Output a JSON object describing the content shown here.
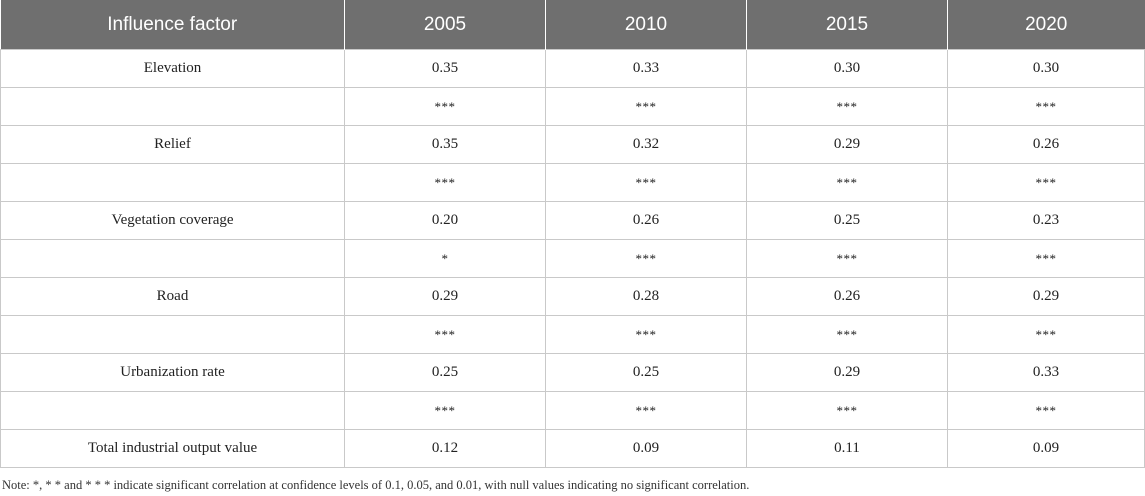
{
  "table": {
    "headers": [
      "Influence factor",
      "2005",
      "2010",
      "2015",
      "2020"
    ],
    "rows": [
      {
        "factor": "Elevation",
        "values": [
          "0.35",
          "0.33",
          "0.30",
          "0.30"
        ],
        "sig": [
          "***",
          "***",
          "***",
          "***"
        ]
      },
      {
        "factor": "Relief",
        "values": [
          "0.35",
          "0.32",
          "0.29",
          "0.26"
        ],
        "sig": [
          "***",
          "***",
          "***",
          "***"
        ]
      },
      {
        "factor": "Vegetation coverage",
        "values": [
          "0.20",
          "0.26",
          "0.25",
          "0.23"
        ],
        "sig": [
          "*",
          "***",
          "***",
          "***"
        ]
      },
      {
        "factor": "Road",
        "values": [
          "0.29",
          "0.28",
          "0.26",
          "0.29"
        ],
        "sig": [
          "***",
          "***",
          "***",
          "***"
        ]
      },
      {
        "factor": "Urbanization rate",
        "values": [
          "0.25",
          "0.25",
          "0.29",
          "0.33"
        ],
        "sig": [
          "***",
          "***",
          "***",
          "***"
        ]
      },
      {
        "factor": "Total industrial output value",
        "values": [
          "0.12",
          "0.09",
          "0.11",
          "0.09"
        ],
        "sig": null
      }
    ]
  },
  "note": "Note: *, * * and * * * indicate significant correlation at confidence levels of 0.1, 0.05, and 0.01, with null values indicating no significant correlation."
}
